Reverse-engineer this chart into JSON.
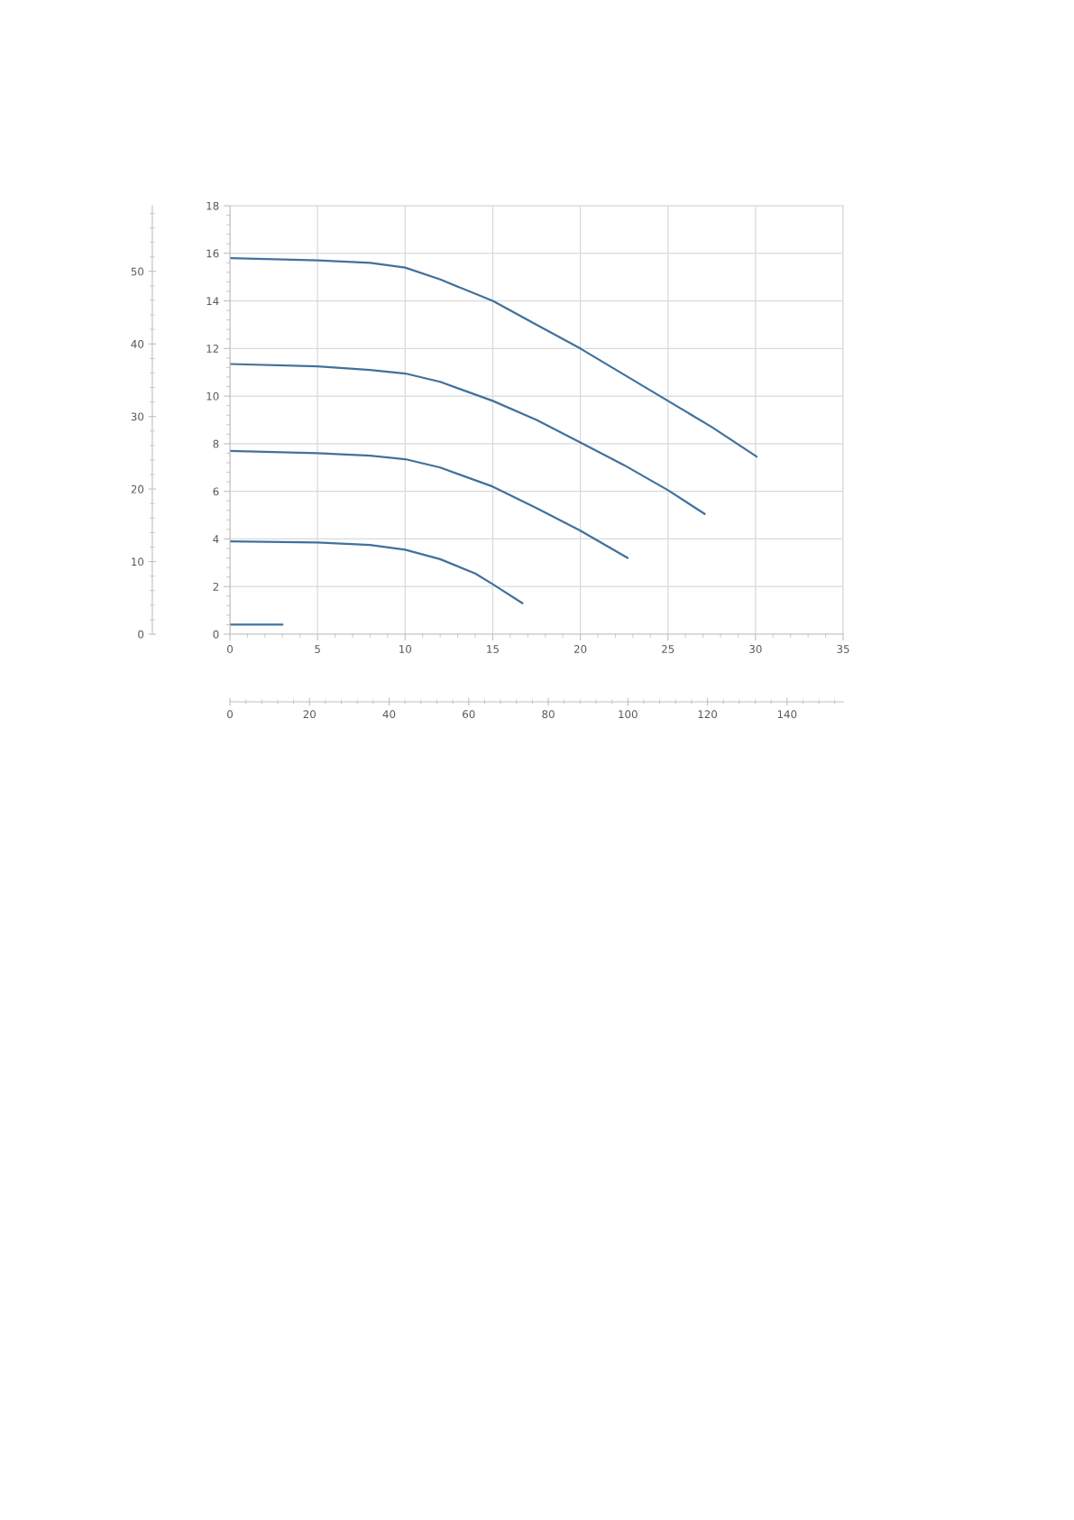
{
  "chart_data": {
    "type": "line",
    "xlim": [
      0,
      35
    ],
    "xticks": [
      0,
      5,
      10,
      15,
      20,
      25,
      30,
      35
    ],
    "ylim": [
      0,
      18
    ],
    "yticks": [
      0,
      2,
      4,
      6,
      8,
      10,
      12,
      14,
      16,
      18
    ],
    "y2lim": [
      0,
      59.05
    ],
    "y2ticks": [
      0,
      10,
      20,
      30,
      40,
      50
    ],
    "x2lim": [
      0,
      154.1
    ],
    "x2ticks": [
      0,
      20,
      40,
      60,
      80,
      100,
      120,
      140
    ],
    "grid": true,
    "marker": "none",
    "line_style": "solid",
    "series": [
      {
        "color": "#41719c",
        "x": [
          0,
          5,
          8,
          10,
          12,
          15,
          17.5,
          20,
          22.5,
          25,
          27.5,
          30.06
        ],
        "values": [
          15.8,
          15.7,
          15.6,
          15.4,
          14.9,
          14.0,
          13.0,
          12.0,
          10.9,
          9.8,
          8.7,
          7.46
        ]
      },
      {
        "color": "#41719c",
        "x": [
          0,
          5,
          8,
          10,
          12,
          15,
          17.5,
          20,
          22.5,
          25,
          27.1
        ],
        "values": [
          11.35,
          11.25,
          11.1,
          10.95,
          10.6,
          9.8,
          9.0,
          8.05,
          7.1,
          6.05,
          5.05
        ]
      },
      {
        "color": "#41719c",
        "x": [
          0,
          5,
          8,
          10,
          12,
          15,
          17.5,
          20,
          22.7
        ],
        "values": [
          7.7,
          7.6,
          7.5,
          7.35,
          7.0,
          6.2,
          5.3,
          4.35,
          3.2
        ]
      },
      {
        "color": "#41719c",
        "x": [
          0,
          5,
          8,
          10,
          12,
          14,
          15,
          16.7
        ],
        "values": [
          3.9,
          3.85,
          3.75,
          3.55,
          3.15,
          2.55,
          2.1,
          1.3
        ]
      },
      {
        "color": "#41719c",
        "x": [
          0,
          3.0
        ],
        "values": [
          0.4,
          0.4
        ]
      }
    ]
  }
}
